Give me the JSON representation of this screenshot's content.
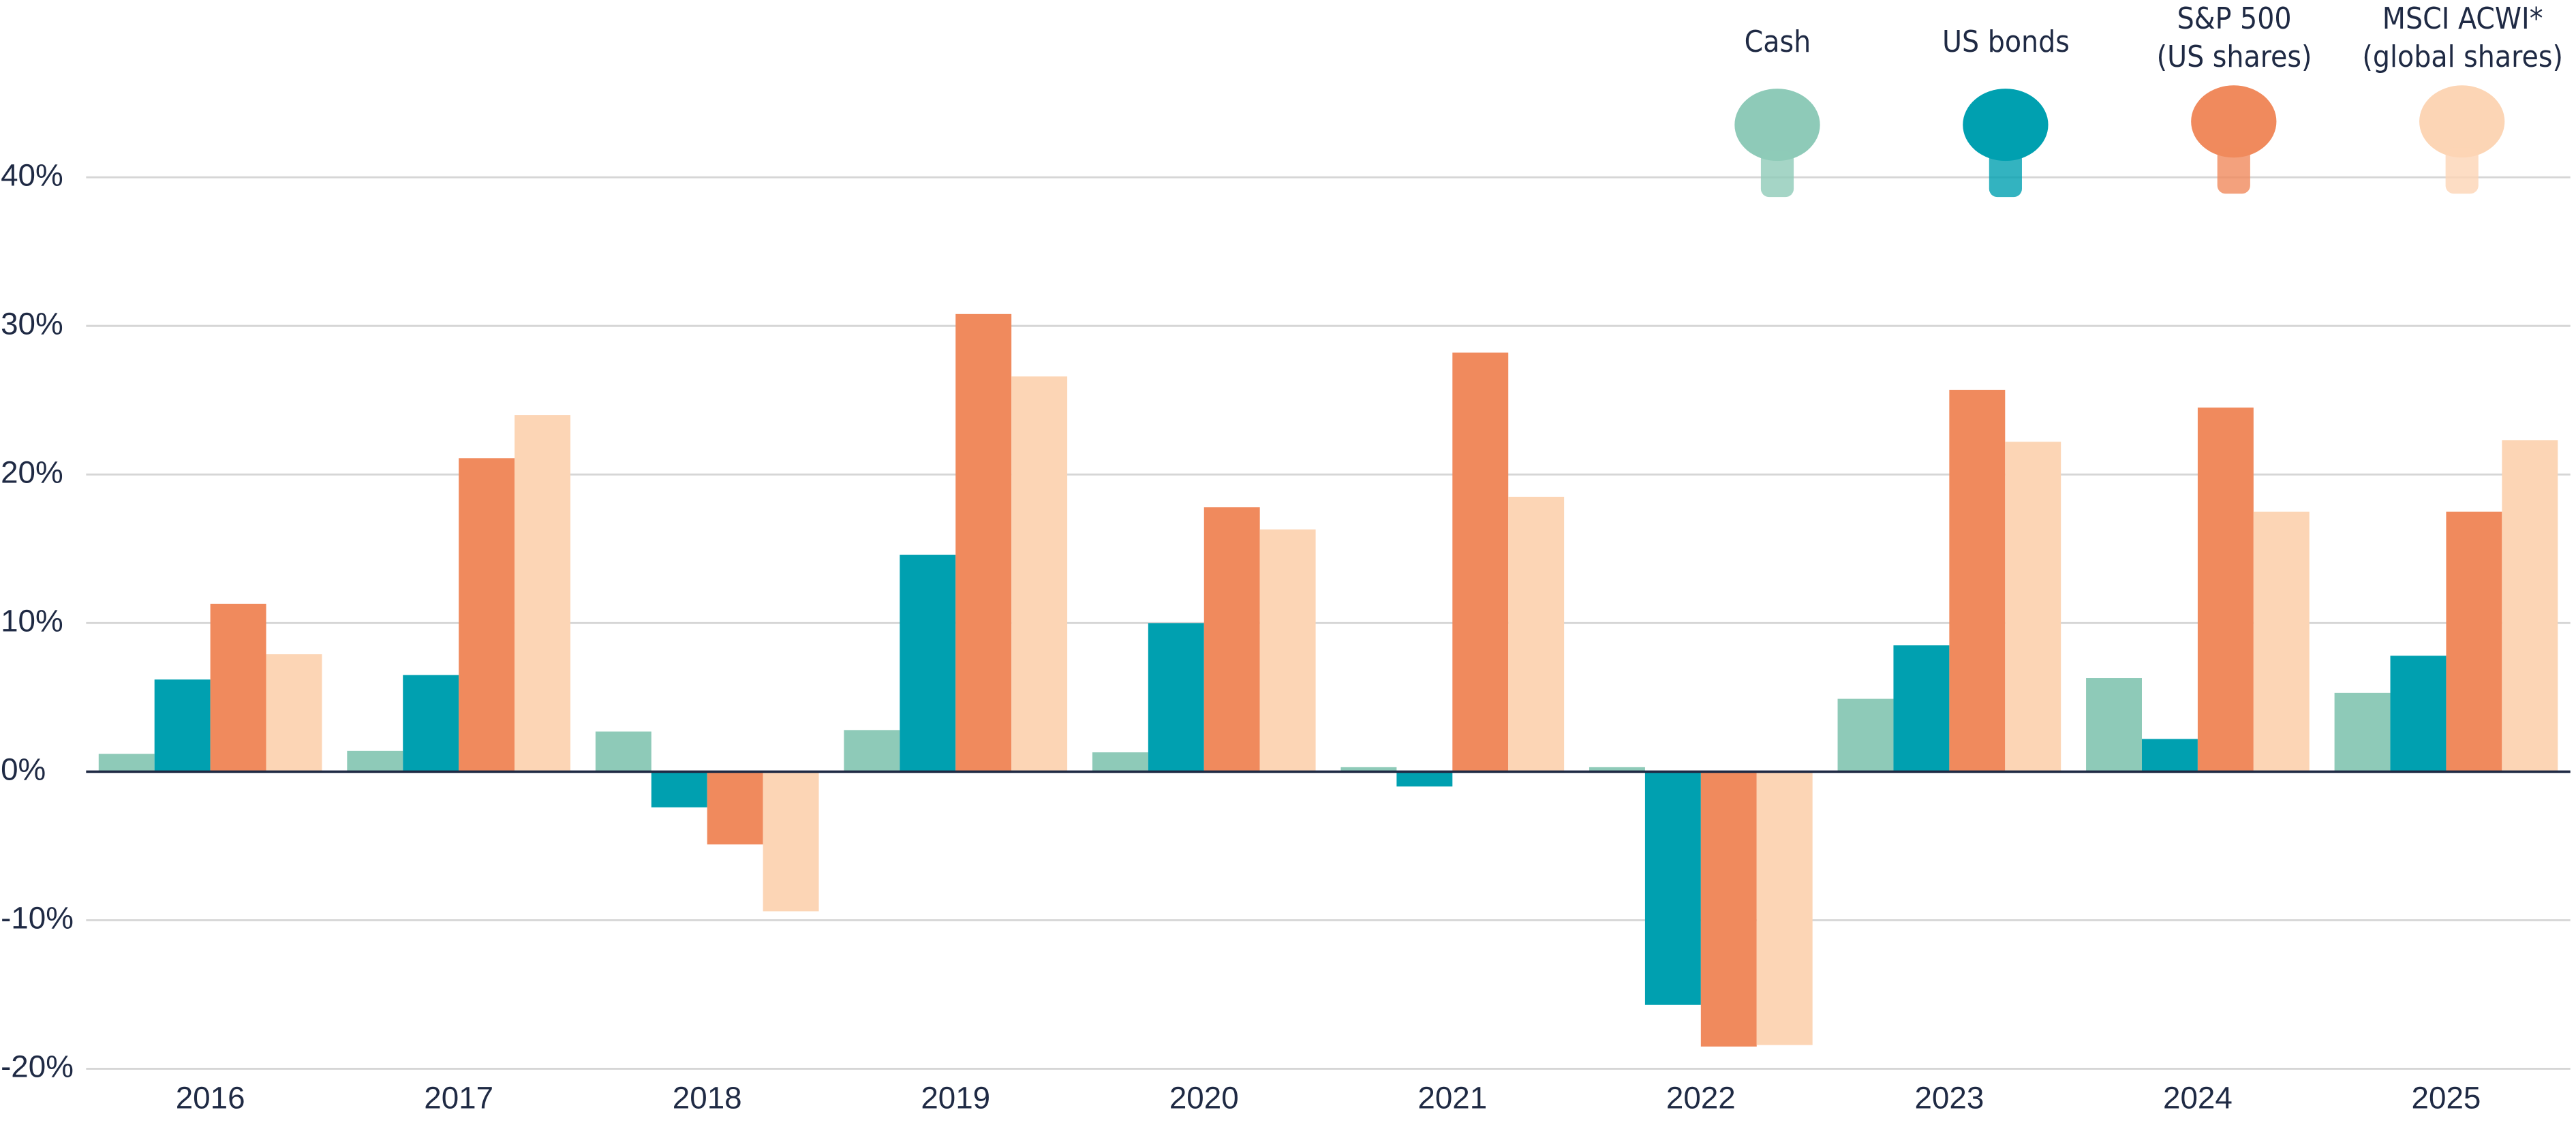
{
  "chart_data": {
    "type": "bar",
    "categories": [
      "2016",
      "2017",
      "2018",
      "2019",
      "2020",
      "2021",
      "2022",
      "2023",
      "2024",
      "2025"
    ],
    "series": [
      {
        "name": "Cash",
        "color": "#8ecab8",
        "values": [
          1.2,
          1.4,
          2.7,
          2.8,
          1.3,
          0.3,
          0.3,
          4.9,
          6.3,
          5.3
        ]
      },
      {
        "name": "US bonds",
        "color": "#00a0b0",
        "values": [
          6.2,
          6.5,
          -2.4,
          14.6,
          10.0,
          -1.0,
          -15.7,
          8.5,
          2.2,
          7.8
        ]
      },
      {
        "name": "S&P 500\n(US shares)",
        "color": "#f08a5d",
        "values": [
          11.3,
          21.1,
          -4.9,
          30.8,
          17.8,
          28.2,
          -18.5,
          25.7,
          24.5,
          17.5
        ]
      },
      {
        "name": "MSCI ACWI*\n(global shares)",
        "color": "#fcd5b5",
        "values": [
          7.9,
          24.0,
          -9.4,
          26.6,
          16.3,
          18.5,
          -18.4,
          22.2,
          17.5,
          22.3
        ]
      }
    ],
    "ylim": [
      -20,
      40
    ],
    "yticks": [
      {
        "value": -20,
        "label": "-20%"
      },
      {
        "value": -10,
        "label": "-10%"
      },
      {
        "value": 0,
        "label": "0%"
      },
      {
        "value": 10,
        "label": "10%"
      },
      {
        "value": 20,
        "label": "20%"
      },
      {
        "value": 30,
        "label": "30%"
      },
      {
        "value": 40,
        "label": "40%"
      }
    ],
    "grid": true
  }
}
